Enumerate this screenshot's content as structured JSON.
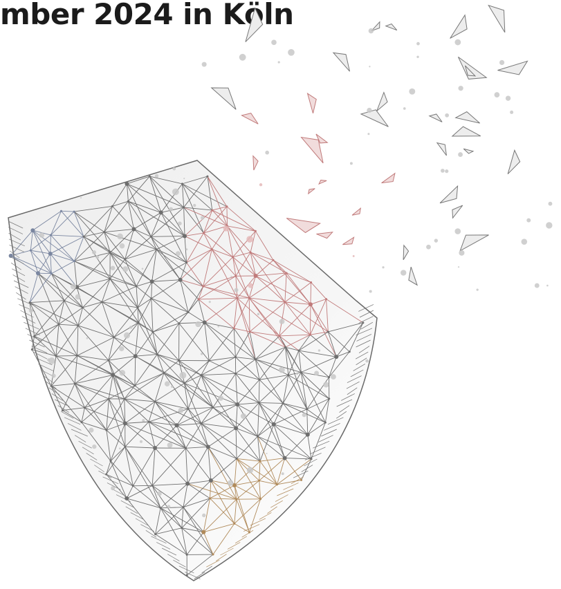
{
  "heading": "mber 2024 in Köln"
}
